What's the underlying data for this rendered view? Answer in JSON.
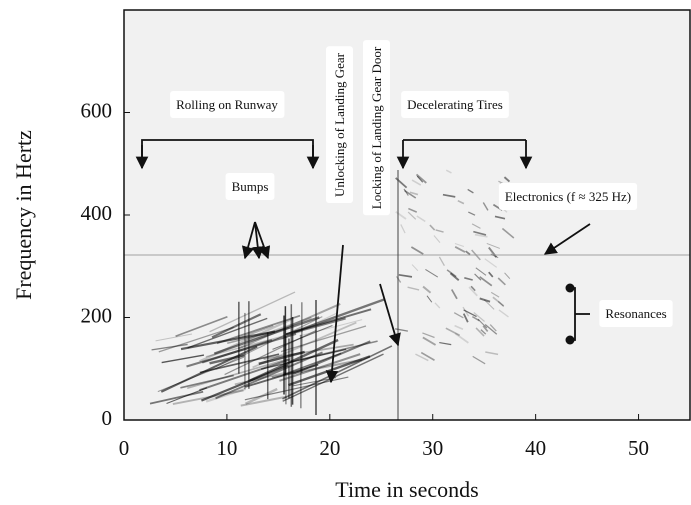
{
  "chart_data": {
    "type": "spectrogram",
    "x_label": "Time in seconds",
    "y_label": "Frequency in Hertz",
    "xlim": [
      0,
      55
    ],
    "ylim": [
      0,
      800
    ],
    "xticks": [
      0,
      10,
      20,
      30,
      40,
      50
    ],
    "yticks": [
      0,
      200,
      400,
      600
    ],
    "annotations": [
      "Rolling on Runway",
      "Bumps",
      "Unlocking of Landing Gear",
      "Locking of Landing Gear Door",
      "Decelerating Tires",
      "Electronics (f ≈ 325 Hz)",
      "Resonances"
    ]
  }
}
